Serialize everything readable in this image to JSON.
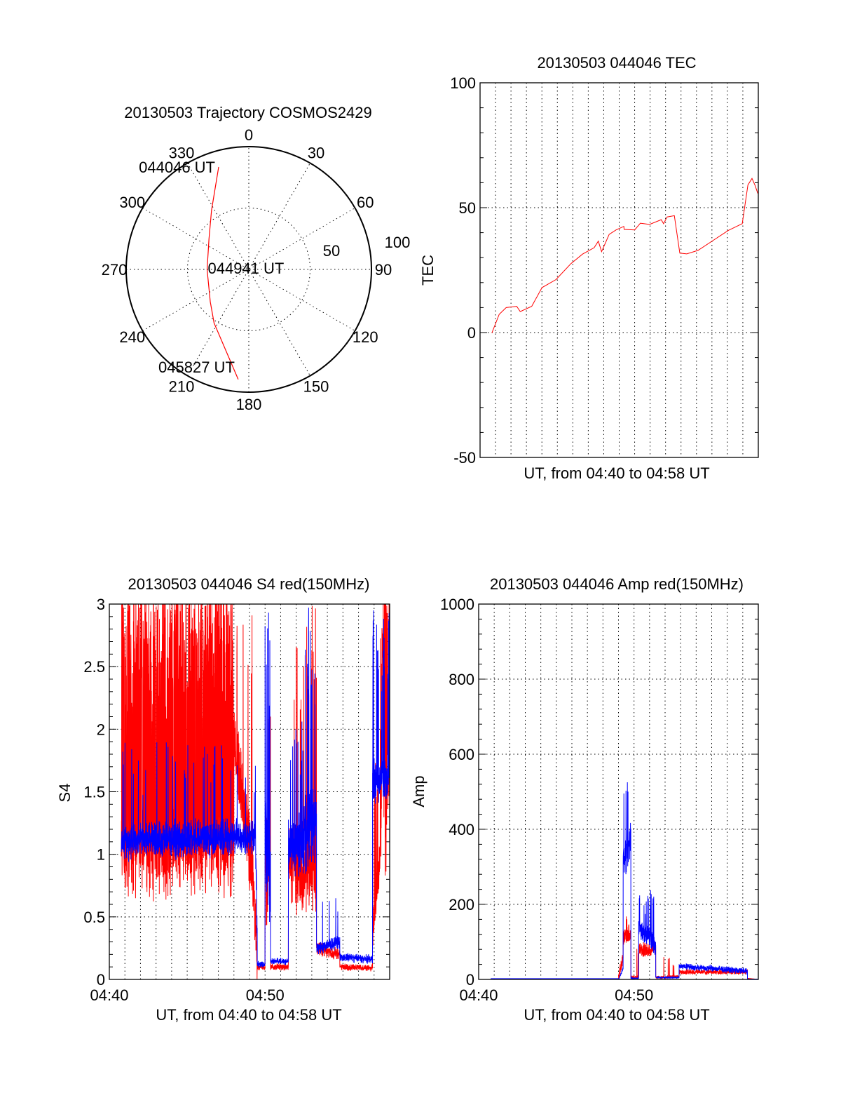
{
  "chart_data": [
    {
      "type": "polar",
      "title": "20130503 Trajectory COSMOS2429",
      "angle_labels": [
        "0",
        "30",
        "60",
        "90",
        "120",
        "150",
        "180",
        "210",
        "240",
        "270",
        "300",
        "330"
      ],
      "radial_labels": [
        "50",
        "100"
      ],
      "rlim": [
        0,
        100
      ],
      "line_color": "#ff0000",
      "trajectory": {
        "azimuth": [
          343.6,
          327.8,
          307.7,
          270,
          230,
          213,
          185.5
        ],
        "radius": [
          87,
          57,
          41,
          34,
          41,
          52,
          90
        ]
      },
      "annotations": [
        {
          "text": "044046 UT",
          "point_index": 0
        },
        {
          "text": "044941 UT",
          "point_index": 3
        },
        {
          "text": "045827 UT",
          "point_index": 6
        }
      ]
    },
    {
      "type": "line",
      "title": "20130503 044046 TEC",
      "xlabel": "UT, from 04:40 to 04:58 UT",
      "ylabel": "TEC",
      "x_unit": "minutes after 04:40 UT",
      "xlim": [
        0,
        18
      ],
      "ylim": [
        -50,
        100
      ],
      "yticks": [
        {
          "value": -50,
          "label": "-50"
        },
        {
          "value": 0,
          "label": "0"
        },
        {
          "value": 50,
          "label": "50"
        },
        {
          "value": 100,
          "label": "100"
        }
      ],
      "series": [
        {
          "name": "TEC",
          "color": "#ff0000",
          "x": [
            0.76,
            1.24,
            1.69,
            2.37,
            2.6,
            3.34,
            4.01,
            4.91,
            5.88,
            6.63,
            7.38,
            7.65,
            7.86,
            8.35,
            8.8,
            9.3,
            9.32,
            10.0,
            10.37,
            10.97,
            11.72,
            11.87,
            12.1,
            12.57,
            12.92,
            13.37,
            14.1,
            16.06,
            16.96,
            17.33,
            17.59,
            17.78,
            17.97
          ],
          "y": [
            -0.2,
            7.3,
            10,
            10.5,
            8.4,
            10.5,
            18,
            21.2,
            27.6,
            31.4,
            34,
            36.6,
            32.4,
            39.3,
            41.1,
            42.5,
            41.3,
            41.1,
            43.8,
            43.3,
            45.2,
            43.6,
            46.3,
            46.8,
            31.8,
            31.5,
            32.9,
            40.9,
            43.6,
            59.1,
            61.7,
            59.1,
            55.7
          ]
        }
      ]
    },
    {
      "type": "line",
      "title": "20130503 044046 S4 red(150MHz)",
      "xlabel": "UT, from 04:40 to 04:58 UT",
      "ylabel": "S4",
      "x_unit": "minutes after 04:40 UT",
      "xlim": [
        0,
        18
      ],
      "ylim": [
        0,
        3
      ],
      "xticks": [
        {
          "value": 0,
          "label": "04:40"
        },
        {
          "value": 10,
          "label": "04:50"
        }
      ],
      "yticks": [
        {
          "value": 0,
          "label": "0"
        },
        {
          "value": 0.5,
          "label": "0.5"
        },
        {
          "value": 1,
          "label": "1"
        },
        {
          "value": 1.5,
          "label": "1.5"
        },
        {
          "value": 2,
          "label": "2"
        },
        {
          "value": 2.5,
          "label": "2.5"
        },
        {
          "value": 3,
          "label": "3"
        }
      ],
      "segment_format": [
        "t_start",
        "t_end",
        "level_start",
        "level_end",
        "noise",
        "spike_probability",
        "spike_level"
      ],
      "series": [
        {
          "name": "red",
          "color": "#ff0000",
          "segments": [
            [
              0.77,
              8.0,
              1.0,
              1.0,
              0.4,
              0.45,
              3.2
            ],
            [
              8.0,
              9.2,
              2.0,
              0.8,
              0.35,
              0.05,
              3
            ],
            [
              9.2,
              9.5,
              0.8,
              0.2,
              0.3,
              0,
              0
            ],
            [
              9.5,
              10.0,
              0.1,
              0.1,
              0.03,
              0,
              0
            ],
            [
              10.0,
              10.35,
              0.9,
              0.9,
              0.5,
              0.1,
              2.3
            ],
            [
              10.35,
              11.5,
              0.1,
              0.1,
              0.03,
              0,
              0
            ],
            [
              11.5,
              12.6,
              1.0,
              0.8,
              0.4,
              0.05,
              2.8
            ],
            [
              12.6,
              13.3,
              1.0,
              0.9,
              0.5,
              0.1,
              3
            ],
            [
              13.3,
              14.8,
              0.25,
              0.2,
              0.06,
              0,
              0
            ],
            [
              14.8,
              16.9,
              0.1,
              0.09,
              0.03,
              0,
              0
            ],
            [
              16.9,
              17.4,
              0.4,
              1.0,
              0.2,
              0.1,
              2
            ],
            [
              17.4,
              18,
              1.6,
              1.6,
              0.8,
              0.4,
              3.2
            ]
          ]
        },
        {
          "name": "blue",
          "color": "#0000ff",
          "segments": [
            [
              0.77,
              9.4,
              1.1,
              1.15,
              0.17,
              0.03,
              1.9
            ],
            [
              9.4,
              9.5,
              1.0,
              0.3,
              0.2,
              0,
              0
            ],
            [
              9.5,
              10.0,
              0.12,
              0.12,
              0.03,
              0,
              0
            ],
            [
              10.0,
              10.35,
              1.0,
              1.0,
              0.6,
              0.15,
              3
            ],
            [
              10.35,
              11.5,
              0.15,
              0.14,
              0.03,
              0,
              0
            ],
            [
              11.5,
              12.5,
              1.1,
              1.1,
              0.3,
              0.05,
              2.1
            ],
            [
              12.5,
              13.3,
              1.2,
              1.3,
              0.4,
              0.1,
              3
            ],
            [
              13.3,
              14.8,
              0.25,
              0.3,
              0.06,
              0.02,
              0.7
            ],
            [
              14.8,
              16.9,
              0.18,
              0.16,
              0.04,
              0,
              0
            ],
            [
              16.9,
              18,
              1.6,
              1.6,
              0.2,
              0.1,
              3
            ]
          ]
        }
      ]
    },
    {
      "type": "line",
      "title": "20130503 044046 Amp red(150MHz)",
      "xlabel": "UT, from 04:40 to 04:58 UT",
      "ylabel": "Amp",
      "x_unit": "minutes after 04:40 UT",
      "xlim": [
        0,
        18
      ],
      "ylim": [
        0,
        1000
      ],
      "xticks": [
        {
          "value": 0,
          "label": "04:40"
        },
        {
          "value": 10,
          "label": "04:50"
        }
      ],
      "yticks": [
        {
          "value": 0,
          "label": "0"
        },
        {
          "value": 200,
          "label": "200"
        },
        {
          "value": 400,
          "label": "400"
        },
        {
          "value": 600,
          "label": "600"
        },
        {
          "value": 800,
          "label": "800"
        },
        {
          "value": 1000,
          "label": "1000"
        }
      ],
      "segment_format": [
        "t_start",
        "t_end",
        "level_start",
        "level_end",
        "noise",
        "spike_probability",
        "spike_level"
      ],
      "series": [
        {
          "name": "red",
          "color": "#ff0000",
          "segments": [
            [
              9.0,
              9.3,
              5,
              60,
              20,
              0,
              0
            ],
            [
              9.3,
              9.8,
              120,
              120,
              30,
              0.05,
              170
            ],
            [
              9.8,
              10.3,
              5,
              5,
              5,
              0.03,
              100
            ],
            [
              10.3,
              11.4,
              80,
              80,
              25,
              0,
              0
            ],
            [
              11.4,
              12.9,
              5,
              8,
              5,
              0.03,
              60
            ],
            [
              12.9,
              17.3,
              20,
              20,
              8,
              0,
              0
            ],
            [
              17.3,
              18,
              3,
              0,
              0,
              0,
              0
            ]
          ]
        },
        {
          "name": "blue",
          "color": "#0000ff",
          "segments": [
            [
              0.77,
              9.05,
              2,
              2,
              0,
              0,
              0
            ],
            [
              9.05,
              9.3,
              5,
              30,
              5,
              0,
              0
            ],
            [
              9.3,
              9.8,
              300,
              380,
              80,
              0.1,
              540
            ],
            [
              9.8,
              10.3,
              3,
              3,
              2,
              0,
              0
            ],
            [
              10.3,
              11.4,
              140,
              90,
              35,
              0.05,
              240
            ],
            [
              11.4,
              12.9,
              5,
              5,
              3,
              0,
              0
            ],
            [
              12.9,
              17.3,
              35,
              22,
              10,
              0,
              0
            ],
            [
              17.3,
              18,
              1,
              1,
              0,
              0,
              0
            ]
          ]
        }
      ]
    }
  ]
}
